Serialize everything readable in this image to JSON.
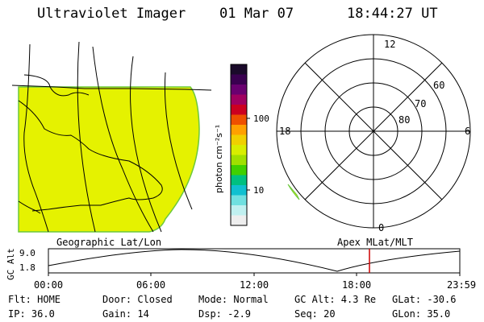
{
  "header": {
    "instrument": "Ultraviolet Imager",
    "date": "01 Mar 07",
    "time": "18:44:27 UT"
  },
  "colorbar": {
    "unit_label": "photon cm⁻²s⁻¹",
    "ticks": [
      "100",
      "10"
    ],
    "colors": [
      "#1a0a2a",
      "#3a0050",
      "#6a0070",
      "#a00060",
      "#cc0020",
      "#ee5000",
      "#ffa000",
      "#f0d000",
      "#d8ee00",
      "#a0e000",
      "#40d000",
      "#00c080",
      "#10c0d0",
      "#70e0e0",
      "#c0f0f0",
      "#eeeeee"
    ]
  },
  "left_panel": {
    "caption": "Geographic Lat/Lon",
    "fill_color": "#e5f200",
    "edge_color": "#6cc83c"
  },
  "right_panel": {
    "caption": "Apex MLat/MLT",
    "mlt_labels": {
      "top": "12",
      "right": "6",
      "bottom": "0",
      "left": "18"
    },
    "lat_labels": [
      "60",
      "70",
      "80"
    ]
  },
  "altitude_plot": {
    "ylabel": "GC Alt",
    "y_ticks": [
      "9.0",
      "1.8"
    ],
    "x_ticks": [
      "00:00",
      "06:00",
      "12:00",
      "18:00",
      "23:59"
    ],
    "marker_color": "#cc0000"
  },
  "footer": {
    "flt": "Flt: HOME",
    "ip": "IP: 36.0",
    "door": "Door: Closed",
    "gain": "Gain: 14",
    "mode": "Mode: Normal",
    "dsp": "Dsp:    -2.9",
    "gc_alt": "GC Alt: 4.3 Re",
    "seq": "Seq: 20",
    "glat": "GLat:  -30.6",
    "glon": "GLon:  35.0"
  }
}
